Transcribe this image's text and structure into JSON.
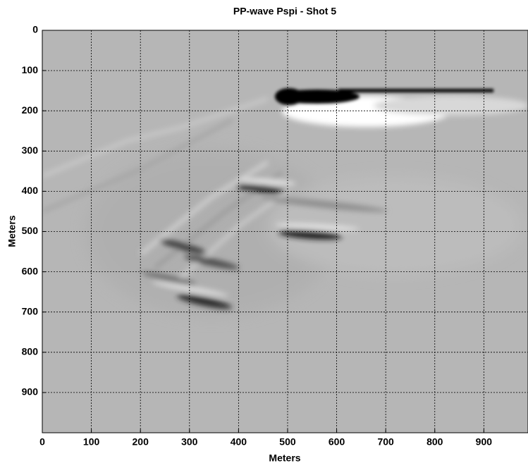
{
  "chart_data": {
    "type": "image",
    "title": "PP-wave Pspi - Shot 5",
    "x_label": "Meters",
    "y_label": "Meters",
    "xlim": [
      0,
      990
    ],
    "ylim": [
      0,
      1000
    ],
    "y_reversed": true,
    "xticks": [
      0,
      100,
      200,
      300,
      400,
      500,
      600,
      700,
      800,
      900
    ],
    "yticks": [
      0,
      100,
      200,
      300,
      400,
      500,
      600,
      700,
      800,
      900
    ],
    "grid": true
  }
}
